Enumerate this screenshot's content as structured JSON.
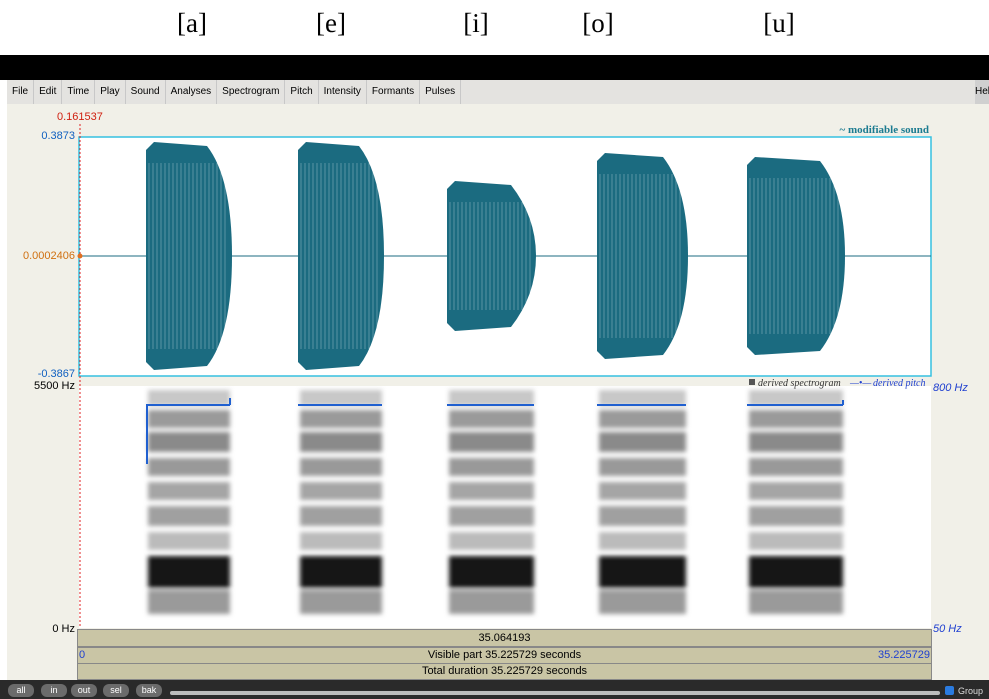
{
  "header": {
    "vowels": [
      "[a]",
      "[e]",
      "[i]",
      "[o]",
      "[u]"
    ]
  },
  "menu": {
    "items": [
      "File",
      "Edit",
      "Time",
      "Play",
      "Sound",
      "Analyses",
      "Spectrogram",
      "Pitch",
      "Intensity",
      "Formants",
      "Pulses"
    ],
    "help": "Hel"
  },
  "editor": {
    "cursor_time": "0.161537",
    "waveform": {
      "top_label": "0.3873",
      "mid_label": "0.0002406",
      "bottom_label": "-0.3867",
      "title": "~ modifiable sound"
    },
    "spectrogram": {
      "top_label": "5500 Hz",
      "bottom_label": "0 Hz",
      "pitch_top_label": "800 Hz",
      "pitch_bottom_label": "50 Hz",
      "legend_spectrogram": "derived spectrogram",
      "legend_pitch": "derived pitch"
    },
    "time_bar": {
      "cursor": "35.064193",
      "visible_start": "0",
      "visible": "Visible part 35.225729 seconds",
      "visible_end": "35.225729",
      "total": "Total duration 35.225729 seconds"
    }
  },
  "toolbar": {
    "buttons": [
      "all",
      "in",
      "out",
      "sel",
      "bak"
    ],
    "group": "Group"
  }
}
